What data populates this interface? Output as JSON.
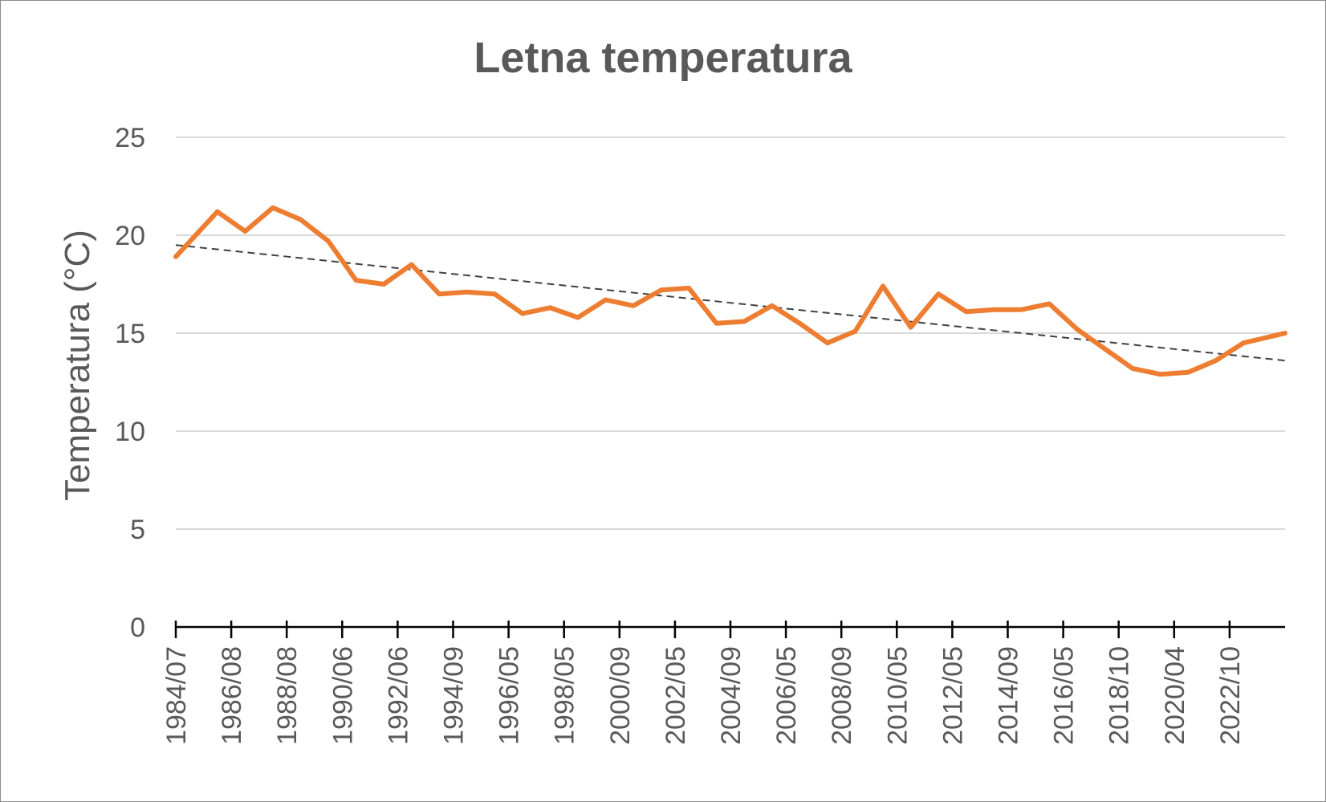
{
  "chart_data": {
    "type": "line",
    "title": "Letna temperatura",
    "xlabel": "",
    "ylabel": "Temperatura (°C)",
    "ylim": [
      0,
      25
    ],
    "yticks": [
      0,
      5,
      10,
      15,
      20,
      25
    ],
    "grid": true,
    "xtick_labels": [
      "1984/07",
      "1986/08",
      "1988/08",
      "1990/06",
      "1992/06",
      "1994/09",
      "1996/05",
      "1998/05",
      "2000/09",
      "2002/05",
      "2004/09",
      "2006/05",
      "2008/09",
      "2010/05",
      "2012/05",
      "2014/09",
      "2016/05",
      "2018/10",
      "2020/04",
      "2022/10"
    ],
    "series": [
      {
        "values": [
          18.9,
          21.2,
          20.2,
          21.4,
          20.8,
          19.7,
          17.7,
          17.5,
          18.5,
          17.0,
          17.1,
          17.0,
          16.0,
          16.3,
          15.8,
          16.7,
          16.4,
          17.2,
          17.3,
          15.5,
          15.6,
          16.4,
          15.5,
          14.5,
          15.1,
          17.4,
          15.3,
          17.0,
          16.1,
          16.2,
          16.2,
          16.5,
          15.2,
          14.2,
          13.2,
          12.9,
          13.0,
          13.6,
          14.5,
          15.0
        ],
        "color": "#ED7D31"
      }
    ],
    "trendline": {
      "type": "linear",
      "start": 19.5,
      "end": 13.6,
      "color": "#404040",
      "style": "dashed"
    }
  }
}
